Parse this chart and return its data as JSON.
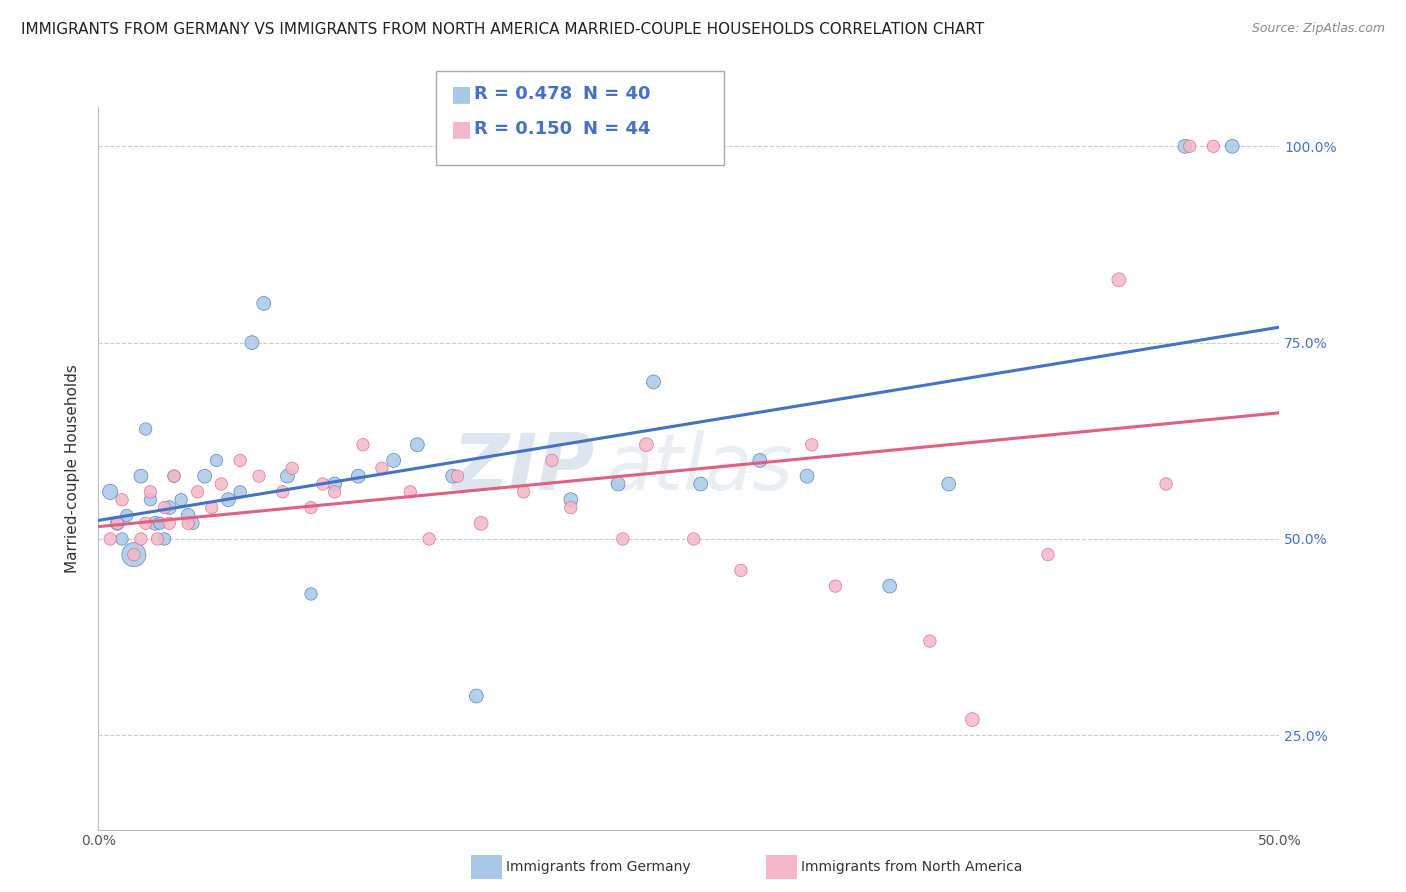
{
  "title": "IMMIGRANTS FROM GERMANY VS IMMIGRANTS FROM NORTH AMERICA MARRIED-COUPLE HOUSEHOLDS CORRELATION CHART",
  "source": "Source: ZipAtlas.com",
  "ylabel": "Married-couple Households",
  "xlim": [
    0.0,
    0.5
  ],
  "ylim": [
    0.13,
    1.05
  ],
  "xticks": [
    0.0,
    0.1,
    0.2,
    0.3,
    0.4,
    0.5
  ],
  "xtick_labels": [
    "0.0%",
    "",
    "",
    "",
    "",
    "50.0%"
  ],
  "ytick_labels_right": [
    "25.0%",
    "50.0%",
    "75.0%",
    "100.0%"
  ],
  "yticks_right": [
    0.25,
    0.5,
    0.75,
    1.0
  ],
  "legend_r1": "R = 0.478",
  "legend_n1": "N = 40",
  "legend_r2": "R = 0.150",
  "legend_n2": "N = 44",
  "legend_label1": "Immigrants from Germany",
  "legend_label2": "Immigrants from North America",
  "blue_color": "#a8c8e8",
  "pink_color": "#f4b8c8",
  "blue_line_color": "#4472c4",
  "pink_line_color": "#e06080",
  "blue_r": 0.478,
  "pink_r": 0.15,
  "watermark_zip": "ZIP",
  "watermark_atlas": "atlas",
  "grid_color": "#cccccc",
  "title_fontsize": 11,
  "axis_label_fontsize": 11,
  "tick_fontsize": 10,
  "blue_x": [
    0.005,
    0.008,
    0.01,
    0.012,
    0.015,
    0.018,
    0.02,
    0.022,
    0.024,
    0.026,
    0.028,
    0.03,
    0.032,
    0.035,
    0.038,
    0.04,
    0.045,
    0.05,
    0.055,
    0.06,
    0.065,
    0.07,
    0.08,
    0.09,
    0.1,
    0.11,
    0.125,
    0.135,
    0.15,
    0.16,
    0.2,
    0.22,
    0.235,
    0.255,
    0.28,
    0.3,
    0.335,
    0.36,
    0.46,
    0.48
  ],
  "blue_y": [
    0.56,
    0.52,
    0.5,
    0.53,
    0.48,
    0.58,
    0.64,
    0.55,
    0.52,
    0.52,
    0.5,
    0.54,
    0.58,
    0.55,
    0.53,
    0.52,
    0.58,
    0.6,
    0.55,
    0.56,
    0.75,
    0.8,
    0.58,
    0.43,
    0.57,
    0.58,
    0.6,
    0.62,
    0.58,
    0.3,
    0.55,
    0.57,
    0.7,
    0.57,
    0.6,
    0.58,
    0.44,
    0.57,
    1.0,
    1.0
  ],
  "blue_size": [
    120,
    100,
    80,
    80,
    300,
    100,
    80,
    80,
    100,
    80,
    80,
    100,
    80,
    80,
    100,
    80,
    100,
    80,
    100,
    80,
    100,
    100,
    100,
    80,
    100,
    100,
    100,
    100,
    100,
    100,
    100,
    100,
    100,
    100,
    100,
    100,
    100,
    100,
    100,
    100
  ],
  "pink_x": [
    0.005,
    0.008,
    0.01,
    0.015,
    0.018,
    0.02,
    0.022,
    0.025,
    0.028,
    0.03,
    0.032,
    0.038,
    0.042,
    0.048,
    0.052,
    0.06,
    0.068,
    0.078,
    0.082,
    0.09,
    0.095,
    0.1,
    0.112,
    0.12,
    0.132,
    0.14,
    0.152,
    0.162,
    0.18,
    0.192,
    0.2,
    0.222,
    0.232,
    0.252,
    0.272,
    0.302,
    0.312,
    0.352,
    0.37,
    0.402,
    0.432,
    0.452,
    0.462,
    0.472
  ],
  "pink_y": [
    0.5,
    0.52,
    0.55,
    0.48,
    0.5,
    0.52,
    0.56,
    0.5,
    0.54,
    0.52,
    0.58,
    0.52,
    0.56,
    0.54,
    0.57,
    0.6,
    0.58,
    0.56,
    0.59,
    0.54,
    0.57,
    0.56,
    0.62,
    0.59,
    0.56,
    0.5,
    0.58,
    0.52,
    0.56,
    0.6,
    0.54,
    0.5,
    0.62,
    0.5,
    0.46,
    0.62,
    0.44,
    0.37,
    0.27,
    0.48,
    0.83,
    0.57,
    1.0,
    1.0
  ],
  "pink_size": [
    80,
    80,
    80,
    80,
    80,
    80,
    80,
    80,
    80,
    80,
    80,
    80,
    80,
    80,
    80,
    80,
    80,
    80,
    80,
    80,
    80,
    80,
    80,
    80,
    80,
    80,
    80,
    100,
    80,
    80,
    80,
    80,
    100,
    80,
    80,
    80,
    80,
    80,
    100,
    80,
    100,
    80,
    80,
    80
  ]
}
